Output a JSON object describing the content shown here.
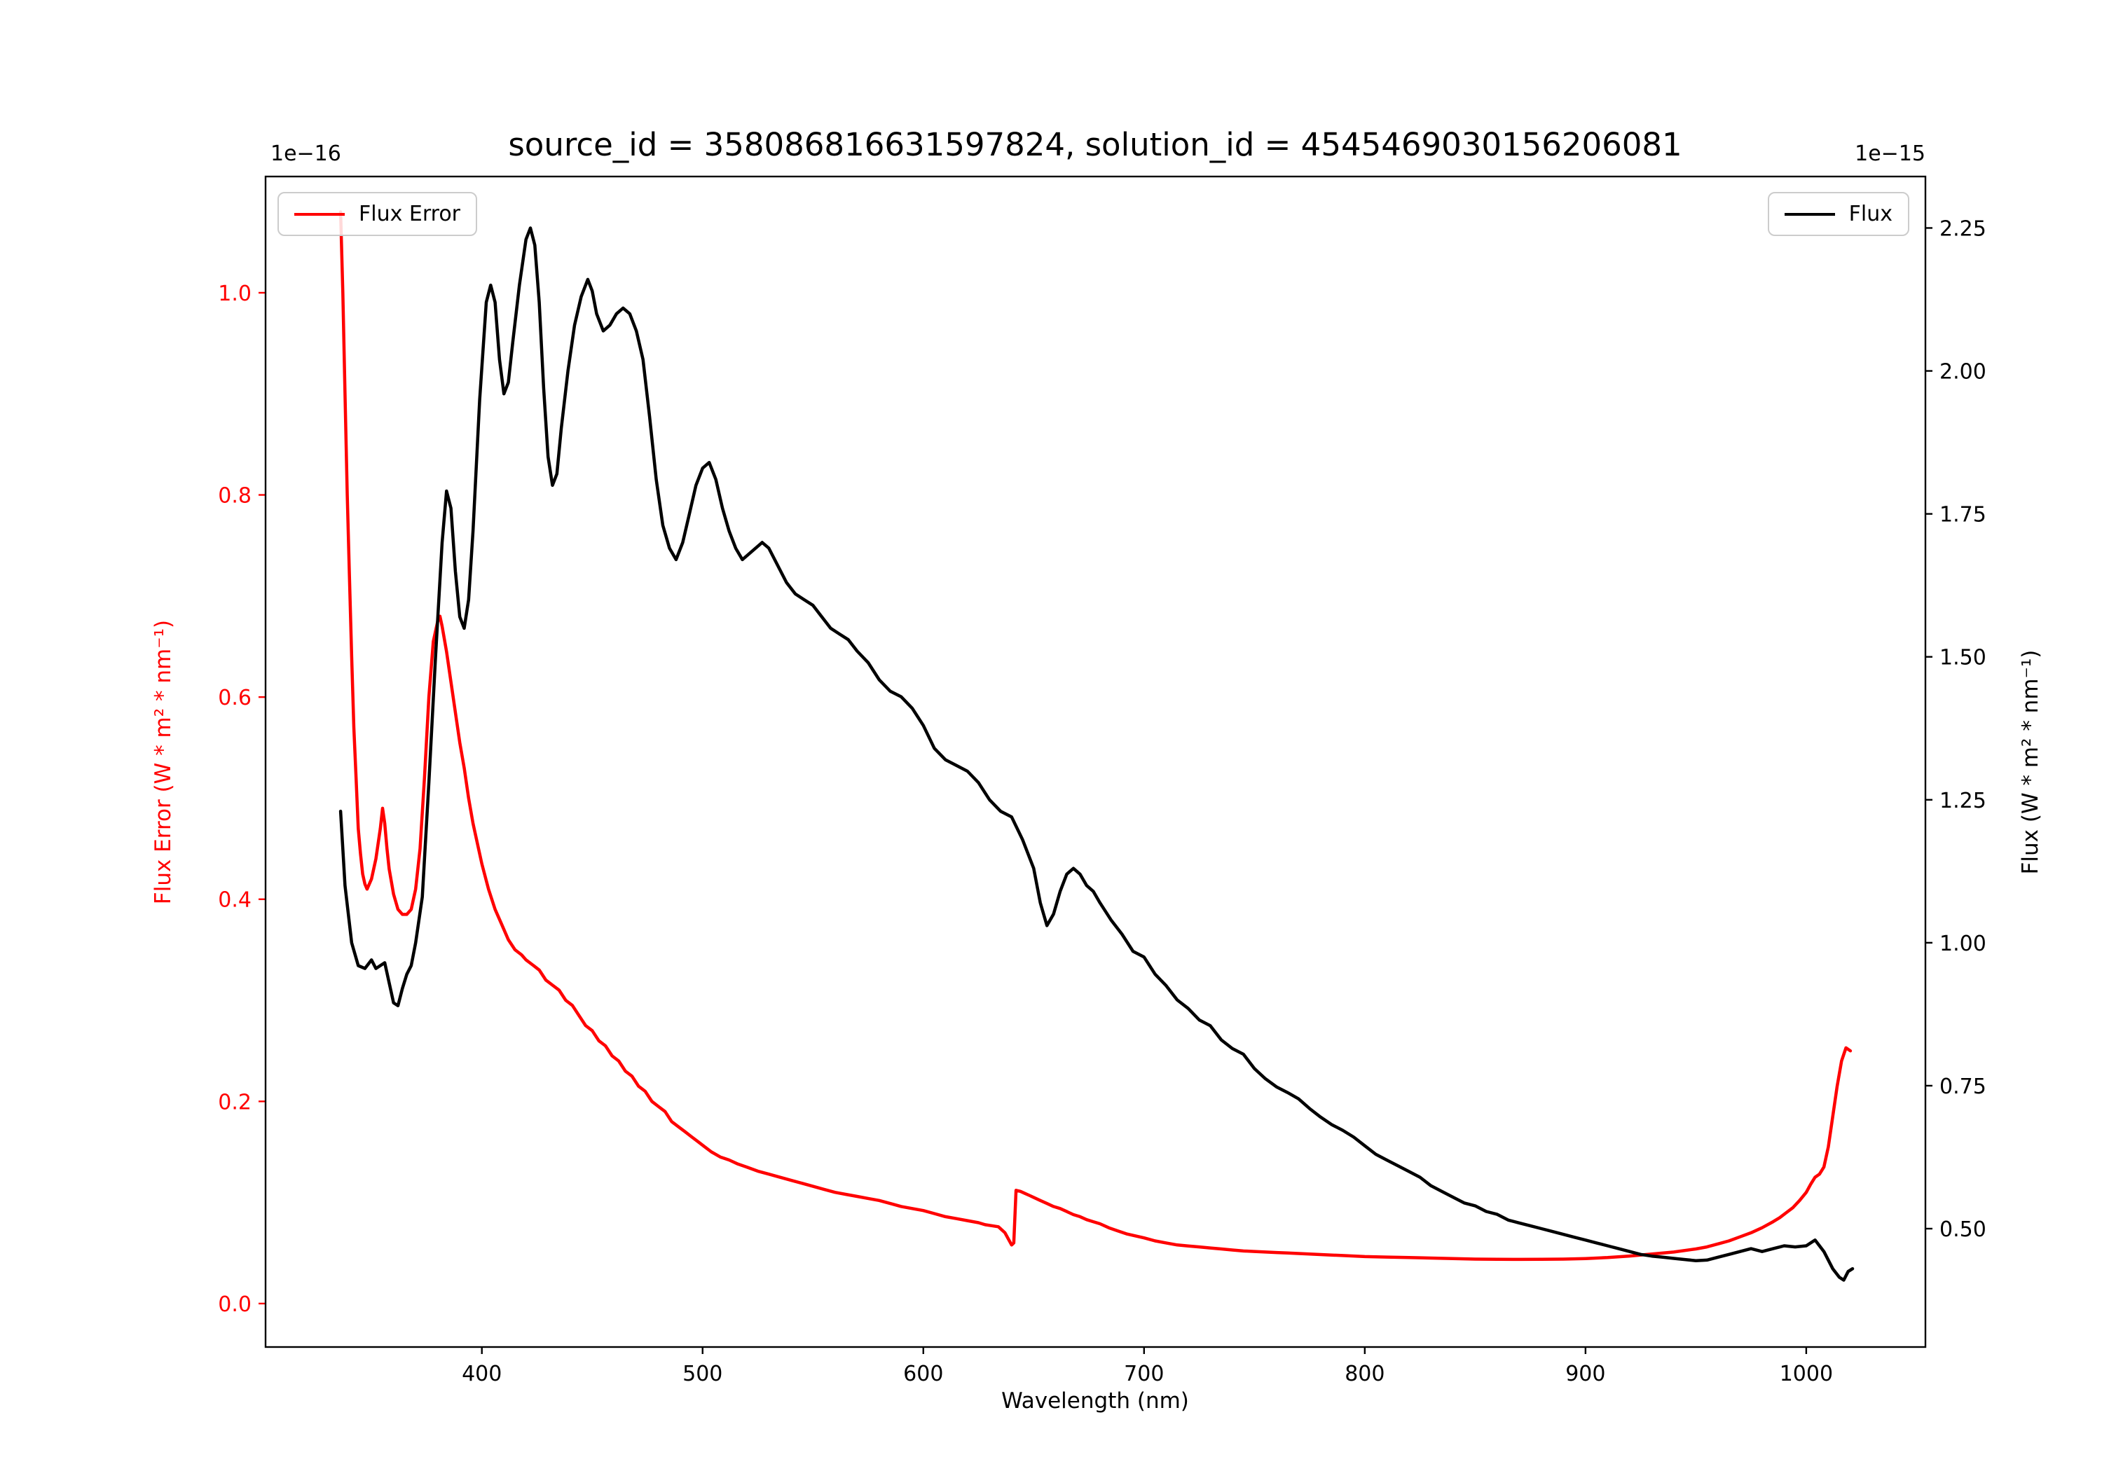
{
  "chart_data": {
    "type": "line",
    "title": "source_id = 358086816631597824, solution_id = 4545469030156206081",
    "xlabel": "Wavelength (nm)",
    "grid": false,
    "xlim": [
      302,
      1054
    ],
    "x_tick_values": [
      400,
      500,
      600,
      700,
      800,
      900,
      1000
    ],
    "x_tick_labels": [
      "400",
      "500",
      "600",
      "700",
      "800",
      "900",
      "1000"
    ],
    "left_axis": {
      "label": "Flux Error (W * m² * nm⁻¹)",
      "offset": "1e−16",
      "color": "#ff0000",
      "ylim": [
        -0.043,
        1.115
      ],
      "tick_values": [
        0.0,
        0.2,
        0.4,
        0.6,
        0.8,
        1.0
      ],
      "tick_labels": [
        "0.0",
        "0.2",
        "0.4",
        "0.6",
        "0.8",
        "1.0"
      ]
    },
    "right_axis": {
      "label": "Flux (W * m² * nm⁻¹)",
      "offset": "1e−15",
      "color": "#000000",
      "ylim": [
        0.293,
        2.34
      ],
      "tick_values": [
        0.5,
        0.75,
        1.0,
        1.25,
        1.5,
        1.75,
        2.0,
        2.25
      ],
      "tick_labels": [
        "0.50",
        "0.75",
        "1.00",
        "1.25",
        "1.50",
        "1.75",
        "2.00",
        "2.25"
      ]
    },
    "legend_left_position": "upper left",
    "legend_right_position": "upper right",
    "series": [
      {
        "name": "Flux Error",
        "axis": "left",
        "color": "#ff0000",
        "x": [
          336,
          337,
          338,
          339,
          340,
          341,
          342,
          343,
          344,
          345,
          346,
          347,
          348,
          350,
          352,
          354,
          355,
          356,
          357,
          358,
          360,
          362,
          364,
          366,
          368,
          370,
          372,
          374,
          376,
          378,
          380,
          381,
          382,
          384,
          386,
          388,
          390,
          392,
          394,
          396,
          398,
          400,
          403,
          406,
          409,
          412,
          415,
          418,
          420,
          423,
          426,
          429,
          432,
          435,
          438,
          441,
          444,
          447,
          450,
          453,
          456,
          459,
          462,
          465,
          468,
          471,
          474,
          477,
          480,
          483,
          486,
          489,
          492,
          495,
          498,
          501,
          504,
          508,
          512,
          516,
          520,
          525,
          530,
          535,
          540,
          545,
          550,
          555,
          560,
          565,
          570,
          575,
          580,
          585,
          590,
          595,
          600,
          605,
          610,
          615,
          620,
          625,
          628,
          631,
          634,
          637,
          640,
          641,
          642,
          644,
          646,
          648,
          650,
          653,
          656,
          659,
          662,
          665,
          668,
          671,
          674,
          677,
          680,
          684,
          688,
          692,
          696,
          700,
          705,
          710,
          715,
          720,
          725,
          730,
          735,
          740,
          745,
          750,
          755,
          760,
          765,
          770,
          775,
          780,
          785,
          790,
          795,
          800,
          810,
          820,
          830,
          840,
          850,
          860,
          870,
          880,
          890,
          900,
          910,
          920,
          930,
          940,
          950,
          955,
          960,
          965,
          970,
          975,
          980,
          985,
          988,
          991,
          994,
          997,
          1000,
          1002,
          1004,
          1006,
          1008,
          1010,
          1012,
          1014,
          1016,
          1018,
          1020
        ],
        "y": [
          1.08,
          1.0,
          0.9,
          0.8,
          0.72,
          0.64,
          0.57,
          0.52,
          0.47,
          0.445,
          0.425,
          0.415,
          0.41,
          0.42,
          0.44,
          0.47,
          0.49,
          0.475,
          0.45,
          0.43,
          0.405,
          0.39,
          0.385,
          0.385,
          0.39,
          0.41,
          0.45,
          0.52,
          0.6,
          0.655,
          0.675,
          0.68,
          0.67,
          0.645,
          0.615,
          0.585,
          0.555,
          0.53,
          0.5,
          0.475,
          0.455,
          0.435,
          0.41,
          0.39,
          0.375,
          0.36,
          0.35,
          0.345,
          0.34,
          0.335,
          0.33,
          0.32,
          0.315,
          0.31,
          0.3,
          0.295,
          0.285,
          0.275,
          0.27,
          0.26,
          0.255,
          0.245,
          0.24,
          0.23,
          0.225,
          0.215,
          0.21,
          0.2,
          0.195,
          0.19,
          0.18,
          0.175,
          0.17,
          0.165,
          0.16,
          0.155,
          0.15,
          0.145,
          0.142,
          0.138,
          0.135,
          0.131,
          0.128,
          0.125,
          0.122,
          0.119,
          0.116,
          0.113,
          0.11,
          0.108,
          0.106,
          0.104,
          0.102,
          0.099,
          0.096,
          0.094,
          0.092,
          0.089,
          0.086,
          0.084,
          0.082,
          0.08,
          0.078,
          0.077,
          0.076,
          0.07,
          0.058,
          0.06,
          0.112,
          0.111,
          0.109,
          0.107,
          0.105,
          0.102,
          0.099,
          0.096,
          0.094,
          0.091,
          0.088,
          0.086,
          0.083,
          0.081,
          0.079,
          0.075,
          0.072,
          0.069,
          0.067,
          0.065,
          0.062,
          0.06,
          0.058,
          0.057,
          0.056,
          0.055,
          0.054,
          0.053,
          0.052,
          0.0515,
          0.051,
          0.0505,
          0.05,
          0.0495,
          0.049,
          0.0485,
          0.048,
          0.0475,
          0.047,
          0.0465,
          0.046,
          0.0455,
          0.045,
          0.0445,
          0.044,
          0.0438,
          0.0437,
          0.0438,
          0.044,
          0.0445,
          0.0455,
          0.047,
          0.049,
          0.051,
          0.054,
          0.056,
          0.059,
          0.062,
          0.066,
          0.07,
          0.075,
          0.081,
          0.085,
          0.09,
          0.095,
          0.102,
          0.11,
          0.118,
          0.125,
          0.128,
          0.135,
          0.155,
          0.185,
          0.215,
          0.24,
          0.253,
          0.25
        ]
      },
      {
        "name": "Flux",
        "axis": "right",
        "color": "#000000",
        "x": [
          336,
          338,
          341,
          344,
          347,
          350,
          352,
          354,
          356,
          358,
          360,
          362,
          364,
          366,
          368,
          370,
          373,
          376,
          379,
          382,
          384,
          386,
          388,
          390,
          392,
          394,
          396,
          399,
          402,
          404,
          406,
          408,
          410,
          412,
          414,
          417,
          420,
          422,
          424,
          426,
          428,
          430,
          432,
          434,
          436,
          439,
          442,
          445,
          448,
          450,
          452,
          455,
          458,
          461,
          464,
          467,
          470,
          473,
          476,
          479,
          482,
          485,
          488,
          491,
          494,
          497,
          500,
          503,
          506,
          509,
          512,
          515,
          518,
          521,
          524,
          527,
          530,
          534,
          538,
          542,
          546,
          550,
          554,
          558,
          562,
          566,
          570,
          575,
          580,
          585,
          590,
          595,
          600,
          605,
          610,
          615,
          620,
          625,
          630,
          635,
          640,
          645,
          650,
          653,
          656,
          659,
          662,
          665,
          668,
          671,
          674,
          677,
          680,
          685,
          690,
          695,
          700,
          705,
          710,
          715,
          720,
          725,
          730,
          735,
          740,
          745,
          750,
          755,
          760,
          765,
          770,
          775,
          780,
          785,
          790,
          795,
          800,
          805,
          810,
          815,
          820,
          825,
          830,
          835,
          840,
          845,
          850,
          855,
          860,
          865,
          870,
          875,
          880,
          885,
          890,
          895,
          900,
          905,
          910,
          915,
          920,
          925,
          930,
          935,
          940,
          945,
          950,
          955,
          960,
          965,
          970,
          975,
          980,
          985,
          990,
          995,
          1000,
          1004,
          1008,
          1012,
          1015,
          1017,
          1019,
          1021
        ],
        "y": [
          1.23,
          1.1,
          1.0,
          0.96,
          0.955,
          0.97,
          0.955,
          0.96,
          0.965,
          0.93,
          0.895,
          0.89,
          0.92,
          0.945,
          0.96,
          1.0,
          1.08,
          1.28,
          1.5,
          1.7,
          1.79,
          1.76,
          1.65,
          1.57,
          1.55,
          1.6,
          1.72,
          1.95,
          2.12,
          2.15,
          2.12,
          2.02,
          1.96,
          1.98,
          2.05,
          2.15,
          2.23,
          2.25,
          2.22,
          2.12,
          1.97,
          1.85,
          1.8,
          1.82,
          1.9,
          2.0,
          2.08,
          2.13,
          2.16,
          2.14,
          2.1,
          2.07,
          2.08,
          2.1,
          2.11,
          2.1,
          2.07,
          2.02,
          1.92,
          1.81,
          1.73,
          1.69,
          1.67,
          1.7,
          1.75,
          1.8,
          1.83,
          1.84,
          1.81,
          1.76,
          1.72,
          1.69,
          1.67,
          1.68,
          1.69,
          1.7,
          1.69,
          1.66,
          1.63,
          1.61,
          1.6,
          1.59,
          1.57,
          1.55,
          1.54,
          1.53,
          1.51,
          1.49,
          1.46,
          1.44,
          1.43,
          1.41,
          1.38,
          1.34,
          1.32,
          1.31,
          1.3,
          1.28,
          1.25,
          1.23,
          1.22,
          1.18,
          1.13,
          1.07,
          1.03,
          1.05,
          1.09,
          1.12,
          1.13,
          1.12,
          1.1,
          1.09,
          1.07,
          1.04,
          1.015,
          0.985,
          0.975,
          0.945,
          0.925,
          0.9,
          0.885,
          0.865,
          0.855,
          0.83,
          0.815,
          0.805,
          0.78,
          0.762,
          0.748,
          0.738,
          0.727,
          0.71,
          0.695,
          0.682,
          0.672,
          0.66,
          0.645,
          0.63,
          0.62,
          0.61,
          0.6,
          0.59,
          0.575,
          0.565,
          0.555,
          0.545,
          0.54,
          0.53,
          0.525,
          0.515,
          0.51,
          0.505,
          0.5,
          0.495,
          0.49,
          0.485,
          0.48,
          0.475,
          0.47,
          0.465,
          0.46,
          0.455,
          0.452,
          0.45,
          0.448,
          0.446,
          0.444,
          0.445,
          0.45,
          0.455,
          0.46,
          0.465,
          0.46,
          0.465,
          0.47,
          0.468,
          0.47,
          0.48,
          0.46,
          0.43,
          0.415,
          0.41,
          0.425,
          0.43
        ]
      }
    ]
  }
}
